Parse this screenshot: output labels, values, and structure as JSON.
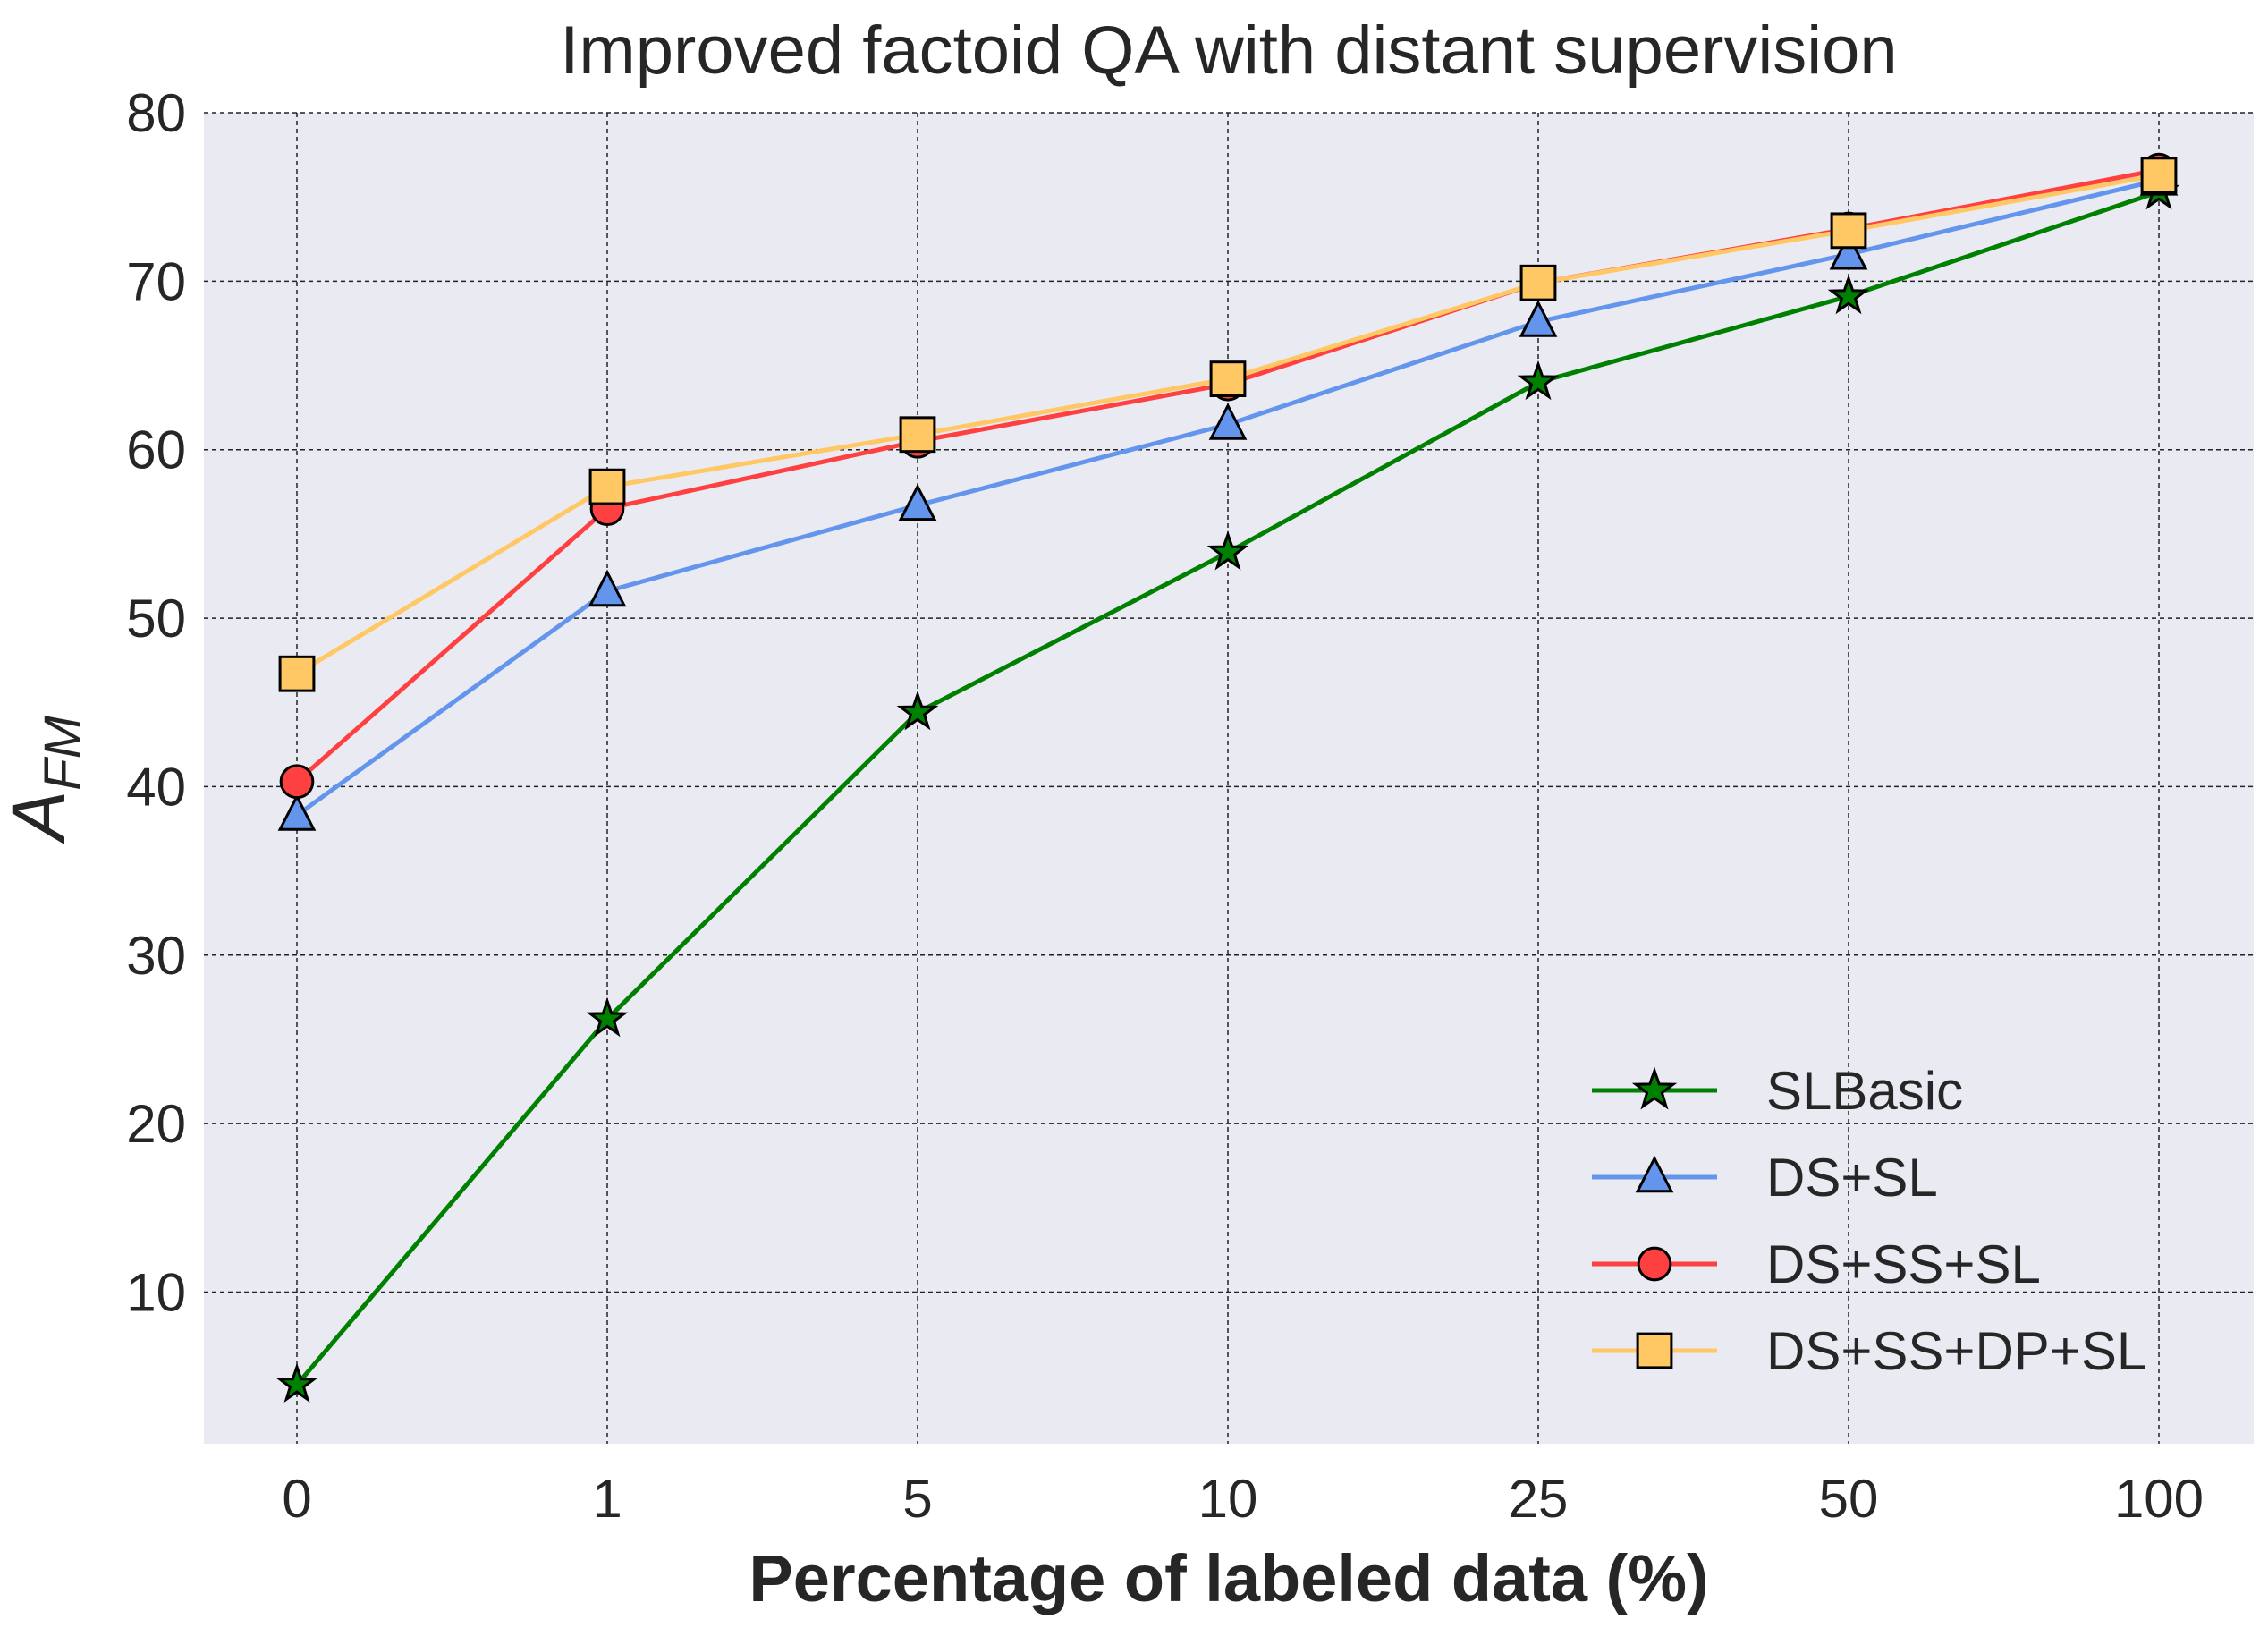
{
  "chart_data": {
    "type": "line",
    "title": "Improved factoid QA with distant supervision",
    "xlabel": "Percentage of labeled data (%)",
    "ylabel_main": "A",
    "ylabel_sub": "FM",
    "categories": [
      "0",
      "1",
      "5",
      "10",
      "25",
      "50",
      "100"
    ],
    "ylim": [
      1,
      80
    ],
    "yticks": [
      10,
      20,
      30,
      40,
      50,
      60,
      70,
      80
    ],
    "grid": true,
    "legend_position": "bottom-right",
    "series": [
      {
        "name": "SLBasic",
        "color": "#008000",
        "marker": "star",
        "values": [
          4.5,
          26.2,
          44.4,
          53.9,
          64.0,
          69.1,
          75.3
        ]
      },
      {
        "name": "DS+SL",
        "color": "#6495ED",
        "marker": "triangle",
        "values": [
          38.3,
          51.6,
          56.7,
          61.5,
          67.6,
          71.6,
          76.0
        ]
      },
      {
        "name": "DS+SS+SL",
        "color": "#FF4040",
        "marker": "circle",
        "values": [
          40.3,
          56.5,
          60.5,
          63.9,
          69.9,
          73.1,
          76.6
        ]
      },
      {
        "name": "DS+SS+DP+SL",
        "color": "#FFC864",
        "marker": "square",
        "values": [
          46.7,
          57.8,
          60.9,
          64.2,
          69.9,
          73.0,
          76.3
        ]
      }
    ]
  }
}
